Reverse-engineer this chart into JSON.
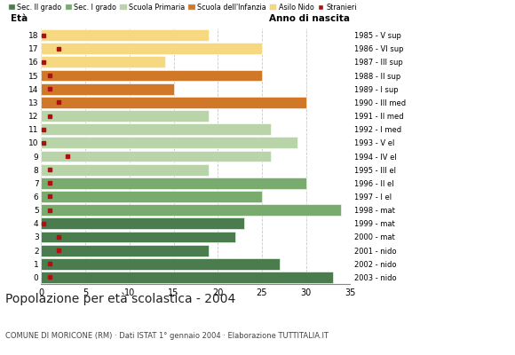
{
  "ages": [
    18,
    17,
    16,
    15,
    14,
    13,
    12,
    11,
    10,
    9,
    8,
    7,
    6,
    5,
    4,
    3,
    2,
    1,
    0
  ],
  "values": [
    33,
    27,
    19,
    22,
    23,
    34,
    25,
    30,
    19,
    26,
    29,
    26,
    19,
    30,
    15,
    25,
    14,
    25,
    19
  ],
  "stranieri_x": [
    1.0,
    1.0,
    2.0,
    2.0,
    0.3,
    1.0,
    1.0,
    1.0,
    1.0,
    3.0,
    0.3,
    0.3,
    1.0,
    2.0,
    1.0,
    1.0,
    0.3,
    2.0,
    0.3
  ],
  "anno_di_nascita": [
    "1985 - V sup",
    "1986 - VI sup",
    "1987 - III sup",
    "1988 - II sup",
    "1989 - I sup",
    "1990 - III med",
    "1991 - II med",
    "1992 - I med",
    "1993 - V el",
    "1994 - IV el",
    "1995 - III el",
    "1996 - II el",
    "1997 - I el",
    "1998 - mat",
    "1999 - mat",
    "2000 - mat",
    "2001 - nido",
    "2002 - nido",
    "2003 - nido"
  ],
  "age_colors": [
    "#4a7c4e",
    "#4a7c4e",
    "#4a7c4e",
    "#4a7c4e",
    "#4a7c4e",
    "#7aab6e",
    "#7aab6e",
    "#7aab6e",
    "#b8d4a8",
    "#b8d4a8",
    "#b8d4a8",
    "#b8d4a8",
    "#b8d4a8",
    "#d07828",
    "#d07828",
    "#d07828",
    "#f5d880",
    "#f5d880",
    "#f5d880"
  ],
  "stranieri_color": "#aa1111",
  "legend_labels": [
    "Sec. II grado",
    "Sec. I grado",
    "Scuola Primaria",
    "Scuola dell'Infanzia",
    "Asilo Nido",
    "Stranieri"
  ],
  "legend_colors": [
    "#4a7c4e",
    "#7aab6e",
    "#b8d4a8",
    "#d07828",
    "#f5d880",
    "#aa1111"
  ],
  "title": "Popolazione per età scolastica - 2004",
  "subtitle": "COMUNE DI MORICONE (RM) · Dati ISTAT 1° gennaio 2004 · Elaborazione TUTTITALIA.IT",
  "xlabel_left": "Età",
  "xlabel_right": "Anno di nascita",
  "xlim": [
    0,
    35
  ],
  "xticks": [
    0,
    5,
    10,
    15,
    20,
    25,
    30,
    35
  ],
  "background_color": "#ffffff",
  "grid_color": "#bbbbbb"
}
